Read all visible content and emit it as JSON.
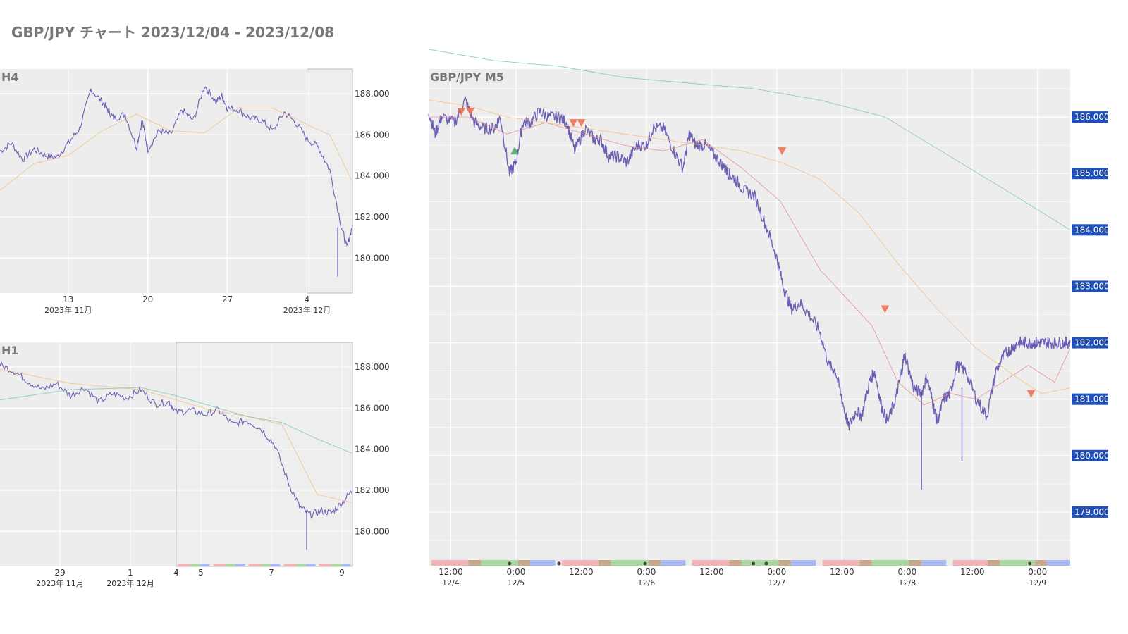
{
  "page": {
    "title": "GBP/JPY チャート 2023/12/04 - 2023/12/08"
  },
  "colors": {
    "price": "#6a5fb5",
    "ma_short": "#e88a8a",
    "ma_mid": "#f2c07a",
    "ma_long": "#7cc4b0",
    "plot_bg": "#ededed",
    "price_tag": "#1f4fb5",
    "signal_sell": "#f06a4a",
    "signal_buy": "#4aa86a",
    "session_asia": "#f0b3b8",
    "session_overlap": "#c7a98b",
    "session_london": "#a9d6a1",
    "session_ny": "#a9b8f0"
  },
  "chart_data": [
    {
      "type": "line",
      "panel": "H4",
      "title": "H4",
      "ylim": [
        178.3,
        189.2
      ],
      "yticks": [
        "188.000",
        "186.000",
        "184.000",
        "182.000",
        "180.000"
      ],
      "ytick_values": [
        188,
        186,
        184,
        182,
        180
      ],
      "xlim": [
        0,
        31
      ],
      "xticks": [
        {
          "x": 6,
          "label": "13",
          "sub": "2023年 11月"
        },
        {
          "x": 13,
          "label": "20",
          "sub": ""
        },
        {
          "x": 20,
          "label": "27",
          "sub": ""
        },
        {
          "x": 27,
          "label": "4",
          "sub": "2023年 12月"
        }
      ],
      "highlight_range": [
        27,
        31
      ],
      "series": [
        {
          "role": "price",
          "x": [
            0,
            1,
            2,
            3,
            4,
            5,
            6,
            7,
            8,
            9,
            9.5,
            10,
            11,
            12,
            12.5,
            13,
            14,
            15,
            16,
            17,
            18,
            19,
            19.5,
            20,
            21,
            22,
            23,
            24,
            25,
            26,
            27,
            28,
            29,
            30,
            30.5,
            31
          ],
          "y": [
            185.2,
            185.6,
            184.8,
            185.3,
            185.0,
            184.9,
            185.6,
            186.3,
            188.2,
            187.6,
            187.2,
            186.8,
            187.0,
            185.4,
            186.7,
            185.3,
            186.2,
            186.0,
            187.2,
            186.7,
            188.4,
            187.6,
            187.9,
            187.3,
            187.2,
            186.8,
            186.7,
            186.2,
            187.1,
            186.6,
            185.8,
            185.4,
            184.3,
            181.6,
            180.5,
            181.6
          ]
        },
        {
          "role": "ma_mid",
          "x": [
            0,
            3,
            6,
            9,
            12,
            15,
            18,
            21,
            24,
            27,
            29,
            31
          ],
          "y": [
            183.3,
            184.6,
            185.0,
            186.2,
            187.0,
            186.2,
            186.1,
            187.3,
            187.3,
            186.5,
            186.0,
            183.7
          ]
        }
      ]
    },
    {
      "type": "line",
      "panel": "H1",
      "title": "H1",
      "ylim": [
        178.3,
        189.2
      ],
      "yticks": [
        "188.000",
        "186.000",
        "184.000",
        "182.000",
        "180.000"
      ],
      "ytick_values": [
        188,
        186,
        184,
        182,
        180
      ],
      "xlim": [
        0,
        10
      ],
      "xticks": [
        {
          "x": 1.7,
          "label": "29",
          "sub": "2023年 11月"
        },
        {
          "x": 3.7,
          "label": "1",
          "sub": "2023年 12月"
        },
        {
          "x": 5,
          "label": "4",
          "sub": ""
        },
        {
          "x": 5.7,
          "label": "5",
          "sub": ""
        },
        {
          "x": 7.7,
          "label": "7",
          "sub": ""
        },
        {
          "x": 9.7,
          "label": "9",
          "sub": ""
        }
      ],
      "highlight_range": [
        5,
        10
      ],
      "series": [
        {
          "role": "price",
          "x": [
            0,
            0.4,
            0.8,
            1.2,
            1.6,
            2.0,
            2.4,
            2.8,
            3.2,
            3.6,
            4.0,
            4.4,
            4.8,
            5.0,
            5.4,
            5.8,
            6.2,
            6.6,
            7.0,
            7.4,
            7.8,
            8.2,
            8.5,
            8.8,
            9.1,
            9.4,
            9.7,
            10
          ],
          "y": [
            188.1,
            187.8,
            187.3,
            186.9,
            187.2,
            186.6,
            187.0,
            186.3,
            186.7,
            186.5,
            186.9,
            186.2,
            186.3,
            185.8,
            185.9,
            185.7,
            185.9,
            185.2,
            185.4,
            185.0,
            184.2,
            182.3,
            181.2,
            180.8,
            181.0,
            180.9,
            181.4,
            182.0
          ]
        },
        {
          "role": "ma_mid",
          "x": [
            0,
            2,
            4,
            5,
            6,
            7,
            8,
            9,
            10
          ],
          "y": [
            187.9,
            187.2,
            186.9,
            186.4,
            185.9,
            185.6,
            185.2,
            181.8,
            181.4
          ]
        },
        {
          "role": "ma_long",
          "x": [
            0,
            2,
            4,
            5,
            6,
            7,
            8,
            9,
            10
          ],
          "y": [
            186.4,
            186.9,
            187.0,
            186.6,
            186.1,
            185.6,
            185.3,
            184.5,
            183.8
          ]
        }
      ]
    },
    {
      "type": "line",
      "panel": "M5",
      "title": "GBP/JPY M5",
      "ylim": [
        178.05,
        186.85
      ],
      "yticks": [
        "186.000",
        "185.000",
        "184.000",
        "183.000",
        "182.000",
        "181.000",
        "180.000",
        "179.000"
      ],
      "ytick_values": [
        186,
        185,
        184,
        183,
        182,
        181,
        180,
        179
      ],
      "xlim": [
        0,
        4.92
      ],
      "xticks": [
        {
          "x": 0.17,
          "label": "12:00",
          "sub": "12/4"
        },
        {
          "x": 0.67,
          "label": "0:00",
          "sub": "12/5"
        },
        {
          "x": 1.17,
          "label": "12:00",
          "sub": ""
        },
        {
          "x": 1.67,
          "label": "0:00",
          "sub": "12/6"
        },
        {
          "x": 2.17,
          "label": "12:00",
          "sub": ""
        },
        {
          "x": 2.67,
          "label": "0:00",
          "sub": "12/7"
        },
        {
          "x": 3.17,
          "label": "12:00",
          "sub": ""
        },
        {
          "x": 3.67,
          "label": "0:00",
          "sub": "12/8"
        },
        {
          "x": 4.17,
          "label": "12:00",
          "sub": ""
        },
        {
          "x": 4.67,
          "label": "0:00",
          "sub": "12/9"
        }
      ],
      "series": [
        {
          "role": "price",
          "x": [
            0,
            0.05,
            0.1,
            0.2,
            0.28,
            0.35,
            0.42,
            0.5,
            0.55,
            0.62,
            0.67,
            0.72,
            0.78,
            0.85,
            0.92,
            1.0,
            1.06,
            1.12,
            1.2,
            1.27,
            1.32,
            1.38,
            1.45,
            1.52,
            1.6,
            1.67,
            1.72,
            1.8,
            1.88,
            1.95,
            2.0,
            2.05,
            2.12,
            2.2,
            2.27,
            2.3,
            2.35,
            2.42,
            2.5,
            2.6,
            2.67,
            2.72,
            2.78,
            2.85,
            2.92,
            3.0,
            3.07,
            3.12,
            3.17,
            3.22,
            3.28,
            3.32,
            3.38,
            3.42,
            3.47,
            3.52,
            3.58,
            3.62,
            3.65,
            3.72,
            3.78,
            3.82,
            3.87,
            3.9,
            3.95,
            4.0,
            4.05,
            4.12,
            4.2,
            4.28,
            4.35,
            4.42,
            4.47,
            4.52,
            4.57,
            4.62,
            4.67,
            4.71,
            4.76,
            4.82,
            4.88,
            4.92
          ],
          "y": [
            186.1,
            185.7,
            186.0,
            185.9,
            186.3,
            185.9,
            185.8,
            185.8,
            186.0,
            185.0,
            185.2,
            185.9,
            185.9,
            186.1,
            186.0,
            186.0,
            185.9,
            185.4,
            185.8,
            185.6,
            185.6,
            185.3,
            185.3,
            185.2,
            185.5,
            185.5,
            185.8,
            185.8,
            185.4,
            185.1,
            185.7,
            185.5,
            185.5,
            185.3,
            185.1,
            185.0,
            184.9,
            184.7,
            184.6,
            184.0,
            183.5,
            183.0,
            182.6,
            182.7,
            182.5,
            182.2,
            181.6,
            181.5,
            181.0,
            180.5,
            180.8,
            180.7,
            181.3,
            181.5,
            180.9,
            180.6,
            181.0,
            181.4,
            181.8,
            181.2,
            181.1,
            181.4,
            180.9,
            180.6,
            181.0,
            181.1,
            181.6,
            181.5,
            181.0,
            180.7,
            181.5,
            181.8,
            181.9,
            182.0,
            182.0,
            182.0,
            182.0,
            182.0,
            182.0,
            182.0,
            182.0,
            182.0
          ]
        },
        {
          "role": "ma_short",
          "x": [
            0,
            0.3,
            0.6,
            0.9,
            1.2,
            1.5,
            1.8,
            2.1,
            2.4,
            2.7,
            3.0,
            3.2,
            3.4,
            3.6,
            3.8,
            4.0,
            4.2,
            4.4,
            4.6,
            4.8,
            4.92
          ],
          "y": [
            186.0,
            186.0,
            185.7,
            185.9,
            185.7,
            185.5,
            185.4,
            185.6,
            185.1,
            184.5,
            183.3,
            182.8,
            182.3,
            181.3,
            180.9,
            181.1,
            181.0,
            181.3,
            181.6,
            181.3,
            181.9
          ]
        },
        {
          "role": "ma_mid",
          "x": [
            0,
            0.3,
            0.6,
            0.9,
            1.2,
            1.5,
            1.8,
            2.1,
            2.4,
            2.7,
            3.0,
            3.3,
            3.6,
            3.9,
            4.2,
            4.5,
            4.7,
            4.92
          ],
          "y": [
            186.3,
            186.2,
            186.0,
            185.9,
            185.8,
            185.7,
            185.6,
            185.5,
            185.4,
            185.2,
            184.9,
            184.3,
            183.4,
            182.6,
            181.9,
            181.4,
            181.1,
            181.2
          ]
        },
        {
          "role": "ma_long",
          "x": [
            0,
            0.5,
            1.0,
            1.5,
            2.0,
            2.5,
            3.0,
            3.5,
            4.0,
            4.5,
            4.92
          ],
          "y": [
            187.2,
            187.0,
            186.9,
            186.7,
            186.6,
            186.5,
            186.3,
            186.0,
            185.3,
            184.6,
            184.0
          ]
        }
      ],
      "signals": [
        {
          "x": 0.25,
          "y": 186.1,
          "kind": "sell"
        },
        {
          "x": 0.32,
          "y": 186.1,
          "kind": "sell"
        },
        {
          "x": 0.66,
          "y": 185.4,
          "kind": "buy"
        },
        {
          "x": 1.11,
          "y": 185.9,
          "kind": "sell"
        },
        {
          "x": 1.17,
          "y": 185.9,
          "kind": "sell"
        },
        {
          "x": 2.71,
          "y": 185.4,
          "kind": "sell"
        },
        {
          "x": 3.5,
          "y": 182.6,
          "kind": "sell"
        },
        {
          "x": 4.62,
          "y": 181.1,
          "kind": "sell"
        }
      ],
      "price_tags": [
        "186.000",
        "185.000",
        "184.000",
        "183.000",
        "182.000",
        "181.000",
        "180.000",
        "179.000"
      ]
    }
  ]
}
